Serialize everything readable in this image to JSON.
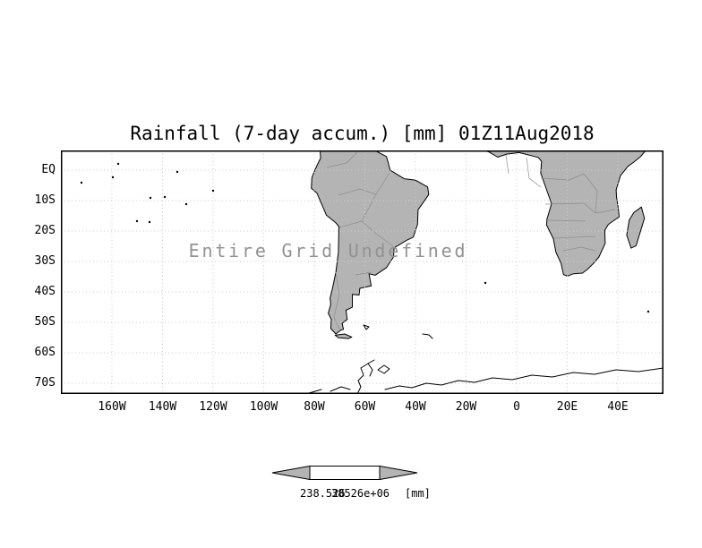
{
  "title": "Rainfall (7-day accum.) [mm] 01Z11Aug2018",
  "undefined_notice": "Entire Grid Undefined",
  "axes": {
    "y_ticks": [
      "EQ",
      "10S",
      "20S",
      "30S",
      "40S",
      "50S",
      "60S",
      "70S"
    ],
    "x_ticks": [
      "160W",
      "140W",
      "120W",
      "100W",
      "80W",
      "60W",
      "40W",
      "20W",
      "0",
      "20E",
      "40E"
    ]
  },
  "colorbar": {
    "labels": [
      "238.526",
      "38526e+06"
    ],
    "unit": "[mm]"
  },
  "colors": {
    "land": "#b4b4b4",
    "coast": "#000000",
    "grid": "#cbcbcb",
    "inner_border": "#8d8d8d",
    "notice": "#929292",
    "bar_fill": "#ffffff"
  },
  "chart_data": {
    "type": "heatmap",
    "title": "Rainfall (7-day accum.) [mm] 01Z11Aug2018",
    "status": "Entire Grid Undefined",
    "values": [],
    "lat_tick_labels": [
      "EQ",
      "10S",
      "20S",
      "30S",
      "40S",
      "50S",
      "60S",
      "70S"
    ],
    "lon_tick_labels": [
      "160W",
      "140W",
      "120W",
      "100W",
      "80W",
      "60W",
      "40W",
      "20W",
      "0",
      "20E",
      "40E"
    ],
    "lon_range_deg": [
      -180,
      58
    ],
    "lat_range_deg": [
      -73.5,
      6.5
    ],
    "grid": true,
    "legend_position": "bottom",
    "colorbar_tick_labels": [
      "238.526",
      "38526e+06"
    ],
    "unit": "mm"
  }
}
